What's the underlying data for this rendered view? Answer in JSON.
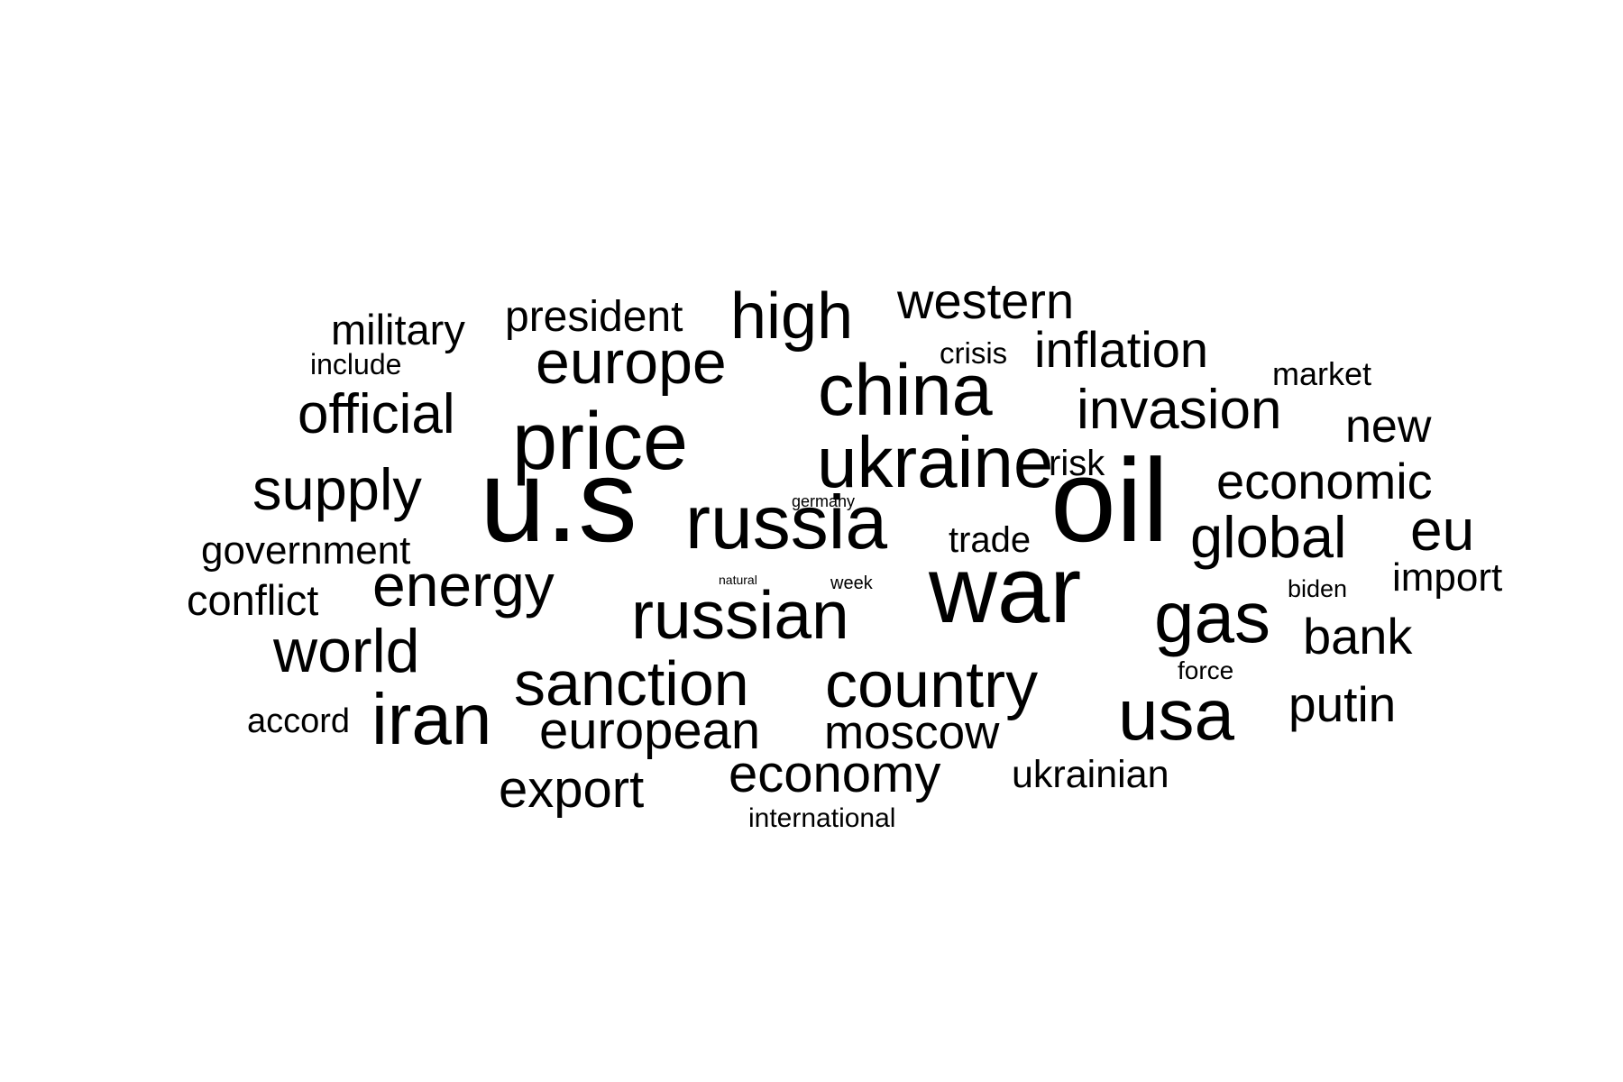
{
  "word_cloud": {
    "color": "#000000",
    "words": [
      {
        "text": "u.s",
        "weight": 131
      },
      {
        "text": "oil",
        "weight": 131
      },
      {
        "text": "war",
        "weight": 105
      },
      {
        "text": "price",
        "weight": 90
      },
      {
        "text": "russia",
        "weight": 84
      },
      {
        "text": "china",
        "weight": 81
      },
      {
        "text": "ukraine",
        "weight": 80
      },
      {
        "text": "gas",
        "weight": 80
      },
      {
        "text": "iran",
        "weight": 80
      },
      {
        "text": "usa",
        "weight": 80
      },
      {
        "text": "russian",
        "weight": 75
      },
      {
        "text": "country",
        "weight": 72
      },
      {
        "text": "high",
        "weight": 72
      },
      {
        "text": "sanction",
        "weight": 70
      },
      {
        "text": "europe",
        "weight": 68
      },
      {
        "text": "world",
        "weight": 68
      },
      {
        "text": "energy",
        "weight": 66
      },
      {
        "text": "supply",
        "weight": 65
      },
      {
        "text": "global",
        "weight": 65
      },
      {
        "text": "eu",
        "weight": 64
      },
      {
        "text": "official",
        "weight": 62
      },
      {
        "text": "invasion",
        "weight": 62
      },
      {
        "text": "economy",
        "weight": 58
      },
      {
        "text": "european",
        "weight": 58
      },
      {
        "text": "export",
        "weight": 58
      },
      {
        "text": "economic",
        "weight": 56
      },
      {
        "text": "western",
        "weight": 56
      },
      {
        "text": "inflation",
        "weight": 56
      },
      {
        "text": "bank",
        "weight": 56
      },
      {
        "text": "putin",
        "weight": 55
      },
      {
        "text": "moscow",
        "weight": 53
      },
      {
        "text": "new",
        "weight": 52
      },
      {
        "text": "president",
        "weight": 48
      },
      {
        "text": "military",
        "weight": 47
      },
      {
        "text": "conflict",
        "weight": 47
      },
      {
        "text": "government",
        "weight": 44
      },
      {
        "text": "import",
        "weight": 44
      },
      {
        "text": "ukrainian",
        "weight": 43
      },
      {
        "text": "risk",
        "weight": 40
      },
      {
        "text": "trade",
        "weight": 40
      },
      {
        "text": "accord",
        "weight": 38
      },
      {
        "text": "market",
        "weight": 36
      },
      {
        "text": "crisis",
        "weight": 33
      },
      {
        "text": "include",
        "weight": 32
      },
      {
        "text": "international",
        "weight": 30
      },
      {
        "text": "force",
        "weight": 28
      },
      {
        "text": "biden",
        "weight": 27
      },
      {
        "text": "week",
        "weight": 20
      },
      {
        "text": "germany",
        "weight": 18
      },
      {
        "text": "natural",
        "weight": 14
      }
    ]
  }
}
